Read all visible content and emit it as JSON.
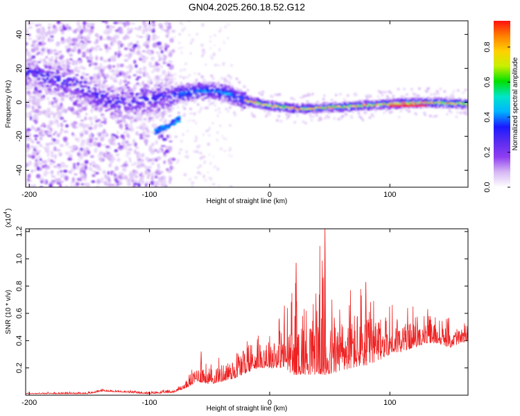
{
  "title": "GN04.2025.260.18.52.G12",
  "chart_data": [
    {
      "type": "heatmap",
      "name": "spectrogram",
      "xlabel": "Height of straight line (km)",
      "ylabel": "Frequency (Hz)",
      "xlim": [
        -203,
        165
      ],
      "ylim": [
        -50,
        48
      ],
      "xticks": [
        -200,
        -100,
        0,
        100
      ],
      "yticks": [
        40,
        20,
        0,
        -20,
        -40
      ],
      "colorbar": {
        "label": "Normalized spectral amplitude",
        "range": [
          0,
          0.95
        ],
        "ticks": [
          "0.0",
          "0.2",
          "0.4",
          "0.6",
          "0.8"
        ],
        "tick_values": [
          0,
          0.2,
          0.4,
          0.6,
          0.8
        ],
        "colors": [
          "#ffffff",
          "#d7b8f5",
          "#8f3df0",
          "#5a2cf0",
          "#1a1aff",
          "#00b4ff",
          "#00e5c8",
          "#00e000",
          "#c8f000",
          "#ffd000",
          "#ff8000",
          "#ff1010"
        ]
      },
      "ridge_frequency_points": [
        {
          "x": -200,
          "y": 18
        },
        {
          "x": -160,
          "y": 10
        },
        {
          "x": -130,
          "y": 0
        },
        {
          "x": -100,
          "y": 2
        },
        {
          "x": -80,
          "y": 4
        },
        {
          "x": -65,
          "y": 6
        },
        {
          "x": -50,
          "y": 7
        },
        {
          "x": -35,
          "y": 5
        },
        {
          "x": -20,
          "y": 1
        },
        {
          "x": 0,
          "y": -2
        },
        {
          "x": 25,
          "y": -4
        },
        {
          "x": 50,
          "y": -3
        },
        {
          "x": 75,
          "y": -2
        },
        {
          "x": 100,
          "y": -1
        },
        {
          "x": 130,
          "y": 0
        },
        {
          "x": 165,
          "y": -1
        }
      ],
      "lower_branch_points": [
        {
          "x": -95,
          "y": -17
        },
        {
          "x": -85,
          "y": -14
        },
        {
          "x": -75,
          "y": -10
        }
      ],
      "peak_segment": {
        "x": [
          100,
          130
        ],
        "y": -2,
        "amplitude": 0.95
      }
    },
    {
      "type": "line",
      "name": "snr",
      "xlabel": "Height of straight line (km)",
      "ylabel": "SNR (10 * v/v)",
      "multiplier_label": "(x10",
      "multiplier_exponent": "4",
      "xlim": [
        -203,
        165
      ],
      "ylim": [
        0,
        1.22
      ],
      "xticks": [
        -200,
        -100,
        0,
        100
      ],
      "yticks": [
        0.2,
        0.4,
        0.6,
        0.8,
        1.0,
        1.2
      ],
      "ytick_labels": [
        "0.2",
        "0.4",
        "0.6",
        "0.8",
        "1.0",
        "1.2"
      ],
      "color": "#ee2222",
      "envelope": {
        "x": [
          -203,
          -150,
          -140,
          -100,
          -80,
          -70,
          -60,
          -50,
          -40,
          -30,
          -20,
          -10,
          0,
          10,
          20,
          30,
          40,
          50,
          60,
          70,
          80,
          90,
          100,
          110,
          120,
          130,
          140,
          150,
          165
        ],
        "base": [
          0.01,
          0.01,
          0.03,
          0.01,
          0.02,
          0.05,
          0.1,
          0.08,
          0.1,
          0.12,
          0.16,
          0.2,
          0.2,
          0.2,
          0.15,
          0.15,
          0.15,
          0.15,
          0.18,
          0.2,
          0.22,
          0.25,
          0.3,
          0.32,
          0.35,
          0.38,
          0.38,
          0.35,
          0.4
        ],
        "peak": [
          0.02,
          0.03,
          0.05,
          0.03,
          0.05,
          0.12,
          0.3,
          0.25,
          0.3,
          0.4,
          0.5,
          0.55,
          0.55,
          0.7,
          0.95,
          0.85,
          1.22,
          0.9,
          0.85,
          0.9,
          0.85,
          0.75,
          0.75,
          0.7,
          0.7,
          0.65,
          0.62,
          0.58,
          0.55
        ]
      },
      "notable_peaks": [
        {
          "x": -57,
          "y": 0.32
        },
        {
          "x": 22,
          "y": 0.97
        },
        {
          "x": 46,
          "y": 1.22
        },
        {
          "x": 80,
          "y": 0.83
        }
      ]
    }
  ]
}
